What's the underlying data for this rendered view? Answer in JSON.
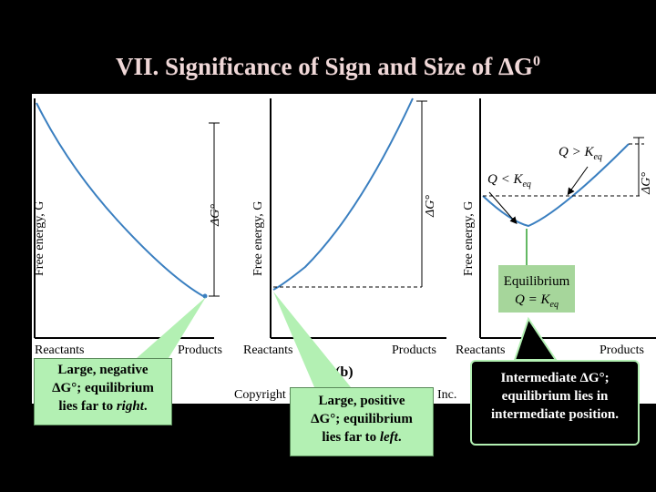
{
  "title": {
    "main": "VII.  Significance of Sign and Size of ΔG",
    "sup": "0"
  },
  "panels": {
    "a": {
      "ylabel": "Free energy, G",
      "xleft": "Reactants",
      "xright": "Products",
      "dg": "ΔG°"
    },
    "b": {
      "ylabel": "Free energy, G",
      "xleft": "Reactants",
      "xright": "Products",
      "dg": "ΔG°",
      "tag": "(b)"
    },
    "c": {
      "ylabel": "Free energy, G",
      "xleft": "Reactants",
      "xright": "Products",
      "dg": "ΔG°",
      "qless": "Q < K",
      "qmore": "Q > K",
      "eqsub": "eq",
      "eqbox_line1": "Equilibrium",
      "eqbox_line2": "Q = K",
      "eqbox_sub": "eq"
    }
  },
  "copyright": {
    "left": "Copyright ©",
    "right": "Inc."
  },
  "callouts": {
    "left": {
      "line1": "Large, negative",
      "line2": "ΔG°; equilibrium",
      "line3": "lies far to ",
      "em": "right",
      "end": "."
    },
    "middle": {
      "line1": "Large, positive",
      "line2": "ΔG°; equilibrium",
      "line3": "lies far to ",
      "em": "left",
      "end": "."
    },
    "right": {
      "line1": "Intermediate ΔG°;",
      "line2": "equilibrium lies in",
      "line3": "intermediate position."
    }
  },
  "colors": {
    "background": "#000000",
    "title": "#f0d8d8",
    "callout": "#b3f0b3",
    "curve": "#3a7fc0",
    "eqbox": "#a6d69b"
  }
}
